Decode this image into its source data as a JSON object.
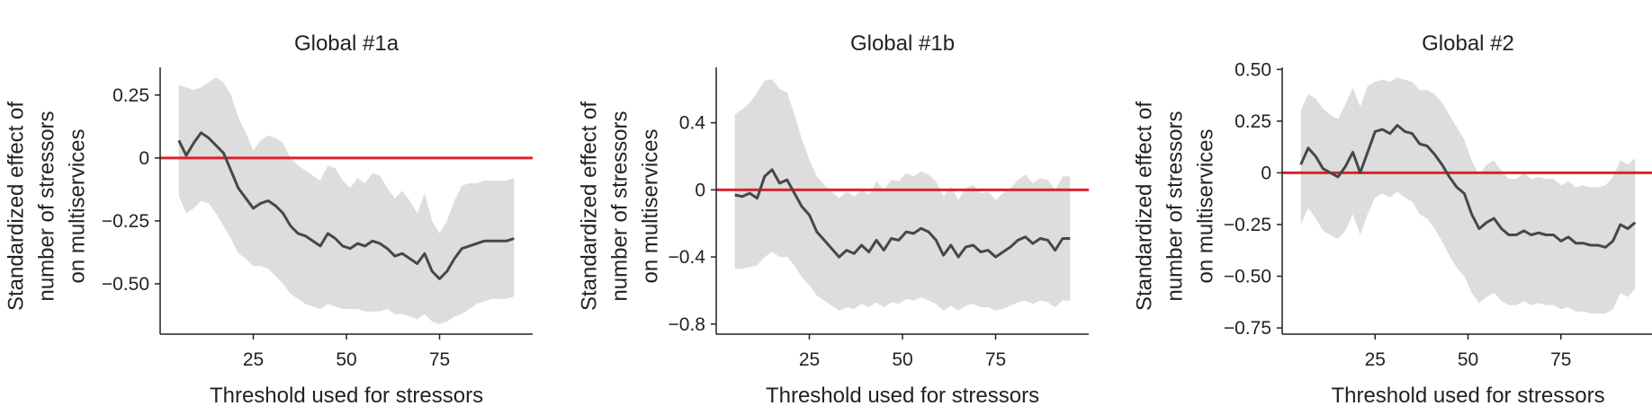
{
  "colors": {
    "mean_line": "#474747",
    "band": "#dcdddc",
    "zero_line": "#d7262c",
    "axis": "#222222"
  },
  "chart_data": [
    {
      "type": "line",
      "title": "Global #1a",
      "xlabel": "Threshold used for stressors",
      "ylabel": [
        "Standardized effect of",
        "number of stressors",
        "on multiservices"
      ],
      "xlim": [
        0,
        100
      ],
      "ylim": [
        -0.7,
        0.36
      ],
      "xticks": [
        25,
        50,
        75
      ],
      "xtick_labels": [
        "25",
        "50",
        "75"
      ],
      "yticks": [
        0.25,
        0,
        -0.25,
        -0.5
      ],
      "ytick_labels": [
        "0.25",
        "0",
        "−0.25",
        "−0.50"
      ],
      "reference_line_y": 0,
      "series": [
        {
          "x": [
            5,
            7,
            9,
            11,
            13,
            15,
            17,
            19,
            21,
            23,
            25,
            27,
            29,
            31,
            33,
            35,
            37,
            39,
            41,
            43,
            45,
            47,
            49,
            51,
            53,
            55,
            57,
            59,
            61,
            63,
            65,
            67,
            69,
            71,
            73,
            75,
            77,
            79,
            81,
            83,
            85,
            87,
            89,
            91,
            93,
            95
          ],
          "y": [
            0.07,
            0.01,
            0.06,
            0.1,
            0.08,
            0.05,
            0.02,
            -0.05,
            -0.12,
            -0.16,
            -0.2,
            -0.18,
            -0.17,
            -0.19,
            -0.22,
            -0.27,
            -0.3,
            -0.31,
            -0.33,
            -0.35,
            -0.3,
            -0.32,
            -0.35,
            -0.36,
            -0.34,
            -0.35,
            -0.33,
            -0.34,
            -0.36,
            -0.39,
            -0.38,
            -0.4,
            -0.42,
            -0.38,
            -0.45,
            -0.48,
            -0.45,
            -0.4,
            -0.36,
            -0.35,
            -0.34,
            -0.33,
            -0.33,
            -0.33,
            -0.33,
            -0.32
          ],
          "lower": [
            -0.15,
            -0.22,
            -0.2,
            -0.17,
            -0.18,
            -0.22,
            -0.27,
            -0.32,
            -0.38,
            -0.4,
            -0.43,
            -0.43,
            -0.44,
            -0.47,
            -0.5,
            -0.54,
            -0.56,
            -0.58,
            -0.59,
            -0.6,
            -0.58,
            -0.59,
            -0.6,
            -0.6,
            -0.6,
            -0.61,
            -0.61,
            -0.61,
            -0.6,
            -0.62,
            -0.62,
            -0.63,
            -0.64,
            -0.62,
            -0.65,
            -0.66,
            -0.65,
            -0.63,
            -0.62,
            -0.6,
            -0.58,
            -0.57,
            -0.56,
            -0.56,
            -0.56,
            -0.55
          ],
          "upper": [
            0.29,
            0.28,
            0.27,
            0.28,
            0.3,
            0.32,
            0.3,
            0.25,
            0.16,
            0.1,
            0.03,
            0.07,
            0.09,
            0.08,
            0.06,
            0.0,
            -0.03,
            -0.05,
            -0.07,
            -0.09,
            -0.03,
            -0.04,
            -0.09,
            -0.12,
            -0.08,
            -0.1,
            -0.06,
            -0.07,
            -0.12,
            -0.16,
            -0.13,
            -0.17,
            -0.22,
            -0.14,
            -0.25,
            -0.3,
            -0.25,
            -0.17,
            -0.11,
            -0.1,
            -0.1,
            -0.09,
            -0.09,
            -0.09,
            -0.09,
            -0.08
          ]
        }
      ]
    },
    {
      "type": "line",
      "title": "Global #1b",
      "xlabel": "Threshold used for stressors",
      "ylabel": [
        "Standardized effect of",
        "number of stressors",
        "on multiservices"
      ],
      "xlim": [
        0,
        100
      ],
      "ylim": [
        -0.86,
        0.73
      ],
      "xticks": [
        25,
        50,
        75
      ],
      "xtick_labels": [
        "25",
        "50",
        "75"
      ],
      "yticks": [
        0.4,
        0,
        -0.4,
        -0.8
      ],
      "ytick_labels": [
        "0.4",
        "0",
        "−0.4",
        "−0.8"
      ],
      "reference_line_y": 0,
      "series": [
        {
          "x": [
            5,
            7,
            9,
            11,
            13,
            15,
            17,
            19,
            21,
            23,
            25,
            27,
            29,
            31,
            33,
            35,
            37,
            39,
            41,
            43,
            45,
            47,
            49,
            51,
            53,
            55,
            57,
            59,
            61,
            63,
            65,
            67,
            69,
            71,
            73,
            75,
            77,
            79,
            81,
            83,
            85,
            87,
            89,
            91,
            93,
            95
          ],
          "y": [
            -0.03,
            -0.04,
            -0.02,
            -0.05,
            0.08,
            0.12,
            0.04,
            0.06,
            -0.02,
            -0.1,
            -0.15,
            -0.25,
            -0.3,
            -0.35,
            -0.4,
            -0.36,
            -0.38,
            -0.33,
            -0.37,
            -0.3,
            -0.36,
            -0.29,
            -0.3,
            -0.25,
            -0.26,
            -0.23,
            -0.25,
            -0.3,
            -0.39,
            -0.33,
            -0.4,
            -0.34,
            -0.33,
            -0.37,
            -0.36,
            -0.4,
            -0.37,
            -0.34,
            -0.3,
            -0.28,
            -0.32,
            -0.29,
            -0.3,
            -0.36,
            -0.29,
            -0.29
          ],
          "lower": [
            -0.47,
            -0.47,
            -0.46,
            -0.45,
            -0.4,
            -0.37,
            -0.4,
            -0.4,
            -0.45,
            -0.52,
            -0.57,
            -0.63,
            -0.66,
            -0.69,
            -0.72,
            -0.7,
            -0.71,
            -0.68,
            -0.7,
            -0.67,
            -0.7,
            -0.67,
            -0.68,
            -0.65,
            -0.66,
            -0.64,
            -0.66,
            -0.68,
            -0.72,
            -0.69,
            -0.72,
            -0.69,
            -0.68,
            -0.7,
            -0.7,
            -0.72,
            -0.71,
            -0.69,
            -0.67,
            -0.66,
            -0.68,
            -0.66,
            -0.67,
            -0.7,
            -0.66,
            -0.66
          ],
          "upper": [
            0.45,
            0.48,
            0.52,
            0.58,
            0.65,
            0.66,
            0.6,
            0.58,
            0.45,
            0.3,
            0.18,
            0.08,
            0.03,
            -0.01,
            -0.05,
            -0.01,
            -0.04,
            0.0,
            -0.03,
            0.05,
            0.0,
            0.06,
            0.05,
            0.1,
            0.08,
            0.11,
            0.09,
            0.05,
            -0.04,
            0.02,
            -0.06,
            0.01,
            0.03,
            -0.02,
            -0.01,
            -0.06,
            -0.02,
            0.01,
            0.06,
            0.09,
            0.04,
            0.07,
            0.06,
            0.0,
            0.08,
            0.08
          ]
        }
      ]
    },
    {
      "type": "line",
      "title": "Global #2",
      "xlabel": "Threshold used for stressors",
      "ylabel": [
        "Standardized effect of",
        "number of stressors",
        "on multiservices"
      ],
      "xlim": [
        0,
        100
      ],
      "ylim": [
        -0.78,
        0.51
      ],
      "xticks": [
        25,
        50,
        75
      ],
      "xtick_labels": [
        "25",
        "50",
        "75"
      ],
      "yticks": [
        0.5,
        0.25,
        0,
        -0.25,
        -0.5,
        -0.75
      ],
      "ytick_labels": [
        "0.50",
        "0.25",
        "0",
        "−0.25",
        "−0.50",
        "−0.75"
      ],
      "reference_line_y": 0,
      "series": [
        {
          "x": [
            5,
            7,
            9,
            11,
            13,
            15,
            17,
            19,
            21,
            23,
            25,
            27,
            29,
            31,
            33,
            35,
            37,
            39,
            41,
            43,
            45,
            47,
            49,
            51,
            53,
            55,
            57,
            59,
            61,
            63,
            65,
            67,
            69,
            71,
            73,
            75,
            77,
            79,
            81,
            83,
            85,
            87,
            89,
            91,
            93,
            95
          ],
          "y": [
            0.04,
            0.12,
            0.08,
            0.02,
            0.0,
            -0.02,
            0.03,
            0.1,
            0.0,
            0.1,
            0.2,
            0.21,
            0.19,
            0.23,
            0.2,
            0.19,
            0.14,
            0.13,
            0.09,
            0.04,
            -0.02,
            -0.07,
            -0.1,
            -0.2,
            -0.27,
            -0.24,
            -0.22,
            -0.27,
            -0.3,
            -0.3,
            -0.28,
            -0.3,
            -0.29,
            -0.3,
            -0.3,
            -0.33,
            -0.31,
            -0.34,
            -0.34,
            -0.35,
            -0.35,
            -0.36,
            -0.33,
            -0.25,
            -0.27,
            -0.24
          ],
          "lower": [
            -0.25,
            -0.17,
            -0.22,
            -0.28,
            -0.3,
            -0.32,
            -0.28,
            -0.2,
            -0.3,
            -0.2,
            -0.12,
            -0.1,
            -0.12,
            -0.09,
            -0.12,
            -0.14,
            -0.2,
            -0.22,
            -0.27,
            -0.33,
            -0.4,
            -0.46,
            -0.5,
            -0.58,
            -0.63,
            -0.6,
            -0.58,
            -0.62,
            -0.64,
            -0.64,
            -0.62,
            -0.64,
            -0.63,
            -0.64,
            -0.64,
            -0.66,
            -0.65,
            -0.67,
            -0.67,
            -0.68,
            -0.68,
            -0.68,
            -0.66,
            -0.58,
            -0.6,
            -0.56
          ],
          "upper": [
            0.3,
            0.38,
            0.36,
            0.31,
            0.28,
            0.26,
            0.33,
            0.41,
            0.32,
            0.42,
            0.44,
            0.45,
            0.44,
            0.46,
            0.45,
            0.44,
            0.4,
            0.4,
            0.38,
            0.34,
            0.28,
            0.22,
            0.16,
            0.06,
            -0.01,
            0.04,
            0.06,
            0.01,
            -0.03,
            -0.03,
            0.0,
            -0.03,
            -0.02,
            -0.03,
            -0.03,
            -0.06,
            -0.04,
            -0.07,
            -0.06,
            -0.07,
            -0.07,
            -0.06,
            -0.02,
            0.06,
            0.04,
            0.07
          ]
        }
      ]
    }
  ]
}
